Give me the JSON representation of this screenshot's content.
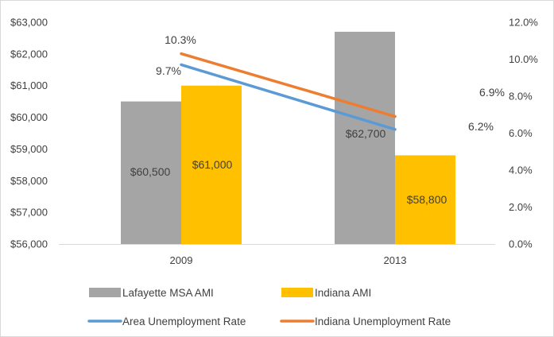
{
  "chart_data": {
    "type": "bar",
    "categories": [
      "2009",
      "2013"
    ],
    "bar_series": [
      {
        "name": "Lafayette MSA AMI",
        "values": [
          60500,
          62700
        ],
        "labels": [
          "$60,500",
          "$62,700"
        ],
        "color": "#A5A5A5"
      },
      {
        "name": "Indiana AMI",
        "values": [
          61000,
          58800
        ],
        "labels": [
          "$61,000",
          "$58,800"
        ],
        "color": "#FFC000"
      }
    ],
    "line_series": [
      {
        "name": "Area Unemployment Rate",
        "values": [
          9.7,
          6.2
        ],
        "labels": [
          "9.7%",
          "6.2%"
        ],
        "color": "#5B9BD5",
        "axis": "right"
      },
      {
        "name": "Indiana Unemployment Rate",
        "values": [
          10.3,
          6.9
        ],
        "labels": [
          "10.3%",
          "6.9%"
        ],
        "color": "#ED7D31",
        "axis": "right"
      }
    ],
    "y_left": {
      "min": 56000,
      "max": 63000,
      "ticks": [
        56000,
        57000,
        58000,
        59000,
        60000,
        61000,
        62000,
        63000
      ],
      "tick_labels": [
        "$56,000",
        "$57,000",
        "$58,000",
        "$59,000",
        "$60,000",
        "$61,000",
        "$62,000",
        "$63,000"
      ]
    },
    "y_right": {
      "min": 0,
      "max": 12,
      "ticks": [
        0,
        2,
        4,
        6,
        8,
        10,
        12
      ],
      "tick_labels": [
        "0.0%",
        "2.0%",
        "4.0%",
        "6.0%",
        "8.0%",
        "10.0%",
        "12.0%"
      ]
    },
    "grid": false,
    "legend_position": "bottom",
    "title": "",
    "xlabel": "",
    "ylabel": ""
  }
}
